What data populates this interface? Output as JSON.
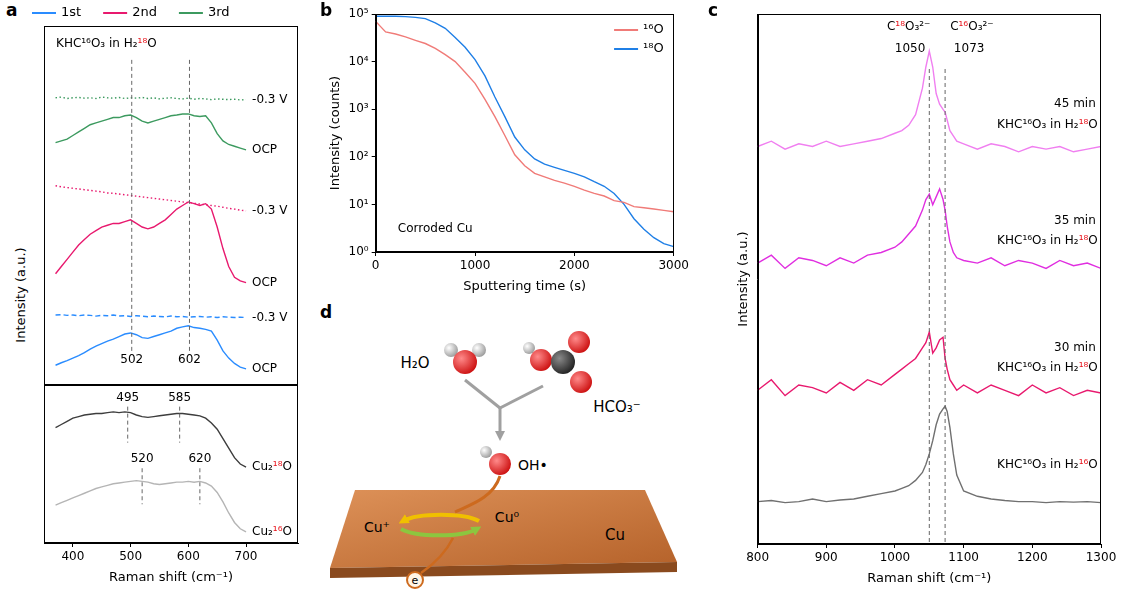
{
  "chart_data": [
    {
      "panel": "a",
      "type": "line",
      "x": [
        370,
        380,
        390,
        400,
        410,
        420,
        430,
        440,
        450,
        460,
        470,
        480,
        490,
        500,
        510,
        520,
        530,
        540,
        550,
        560,
        570,
        580,
        590,
        600,
        610,
        620,
        630,
        640,
        650,
        660,
        670,
        680,
        690,
        700
      ],
      "xlim": [
        350,
        790
      ],
      "ylim": [
        0,
        10
      ],
      "tick_labels": false,
      "legend": "top",
      "y_label": "Intensity (a.u.)",
      "annotations": [
        {
          "text": "KHC¹⁶O₃ in H₂¹⁸O",
          "x": 458,
          "y": 9.5
        }
      ],
      "reference_lines": [
        {
          "x": 502,
          "label": "502",
          "label_y": 0.7
        },
        {
          "x": 602,
          "label": "602",
          "label_y": 0.7
        }
      ],
      "series": [
        {
          "name": "1st",
          "color": "#2a8cff",
          "end_label": "OCP",
          "values": [
            0.55,
            0.62,
            0.68,
            0.75,
            0.82,
            0.9,
            1.0,
            1.08,
            1.15,
            1.22,
            1.28,
            1.35,
            1.42,
            1.45,
            1.4,
            1.32,
            1.3,
            1.35,
            1.4,
            1.45,
            1.5,
            1.58,
            1.62,
            1.65,
            1.6,
            1.58,
            1.55,
            1.5,
            1.25,
            0.95,
            0.75,
            0.6,
            0.5,
            0.45
          ]
        },
        {
          "name": "1st",
          "color": "#2a8cff",
          "line_style": "dashed",
          "end_label": "-0.3 V",
          "values": [
            1.95,
            1.96,
            1.94,
            1.95,
            1.93,
            1.95,
            1.94,
            1.92,
            1.94,
            1.93,
            1.95,
            1.92,
            1.93,
            1.91,
            1.93,
            1.92,
            1.9,
            1.92,
            1.91,
            1.9,
            1.92,
            1.9,
            1.91,
            1.89,
            1.9,
            1.91,
            1.89,
            1.9,
            1.88,
            1.9,
            1.89,
            1.88,
            1.89,
            1.88
          ]
        },
        {
          "name": "2nd",
          "color": "#e8196e",
          "end_label": "OCP",
          "values": [
            3.1,
            3.3,
            3.5,
            3.7,
            3.9,
            4.05,
            4.2,
            4.3,
            4.4,
            4.45,
            4.5,
            4.5,
            4.55,
            4.6,
            4.5,
            4.4,
            4.35,
            4.4,
            4.5,
            4.6,
            4.75,
            4.9,
            5.0,
            5.1,
            5.05,
            5.0,
            5.05,
            4.9,
            4.4,
            3.8,
            3.3,
            3.0,
            2.9,
            2.85
          ]
        },
        {
          "name": "2nd",
          "color": "#e8196e",
          "line_style": "dotted",
          "end_label": "-0.3 V",
          "values": [
            5.55,
            5.52,
            5.5,
            5.48,
            5.46,
            5.44,
            5.42,
            5.4,
            5.38,
            5.35,
            5.34,
            5.32,
            5.3,
            5.28,
            5.26,
            5.24,
            5.22,
            5.2,
            5.18,
            5.16,
            5.14,
            5.12,
            5.1,
            5.08,
            5.06,
            5.04,
            5.02,
            5.0,
            4.98,
            4.95,
            4.92,
            4.9,
            4.87,
            4.85
          ]
        },
        {
          "name": "3rd",
          "color": "#3c9a5f",
          "end_label": "OCP",
          "values": [
            6.75,
            6.8,
            6.85,
            6.95,
            7.05,
            7.15,
            7.25,
            7.3,
            7.35,
            7.4,
            7.45,
            7.45,
            7.5,
            7.52,
            7.45,
            7.35,
            7.3,
            7.35,
            7.4,
            7.45,
            7.5,
            7.52,
            7.55,
            7.55,
            7.5,
            7.48,
            7.5,
            7.3,
            7.0,
            6.8,
            6.7,
            6.65,
            6.6,
            6.55
          ]
        },
        {
          "name": "3rd",
          "color": "#3c9a5f",
          "line_style": "dotted",
          "end_label": "-0.3 V",
          "values": [
            8.0,
            8.02,
            7.98,
            8.0,
            8.01,
            7.99,
            8.0,
            7.98,
            8.02,
            8.0,
            7.99,
            8.01,
            7.98,
            8.0,
            7.99,
            8.01,
            7.98,
            8.0,
            7.97,
            7.99,
            8.0,
            7.98,
            7.97,
            7.99,
            7.96,
            7.98,
            7.97,
            7.95,
            7.97,
            7.96,
            7.95,
            7.96,
            7.94,
            7.95
          ]
        }
      ]
    },
    {
      "panel": "a",
      "type": "line",
      "x": [
        370,
        380,
        390,
        400,
        410,
        420,
        430,
        440,
        450,
        460,
        470,
        480,
        490,
        500,
        510,
        520,
        530,
        540,
        550,
        560,
        570,
        580,
        590,
        600,
        610,
        620,
        630,
        640,
        650,
        660,
        670,
        680,
        690,
        700
      ],
      "xlim": [
        350,
        790
      ],
      "xticks": [
        400,
        500,
        600,
        700
      ],
      "ylim": [
        0,
        10
      ],
      "tick_labels": "x",
      "x_label": "Raman shift (cm⁻¹)",
      "reference_lines": [
        {
          "x": 495,
          "label": "495",
          "label_y": 9.2
        },
        {
          "x": 585,
          "label": "585",
          "label_y": 9.2
        },
        {
          "x": 520,
          "label": "520",
          "label_y": 5.3
        },
        {
          "x": 620,
          "label": "620",
          "label_y": 5.3
        }
      ],
      "series": [
        {
          "color": "#3d3d3d",
          "end_label": "Cu₂¹⁸O",
          "values": [
            7.3,
            7.5,
            7.7,
            7.9,
            8.0,
            8.1,
            8.15,
            8.2,
            8.2,
            8.25,
            8.3,
            8.25,
            8.3,
            8.25,
            8.1,
            8.0,
            7.95,
            8.0,
            8.05,
            8.1,
            8.15,
            8.2,
            8.2,
            8.15,
            8.1,
            8.05,
            7.9,
            7.6,
            7.2,
            6.6,
            6.0,
            5.4,
            5.0,
            4.8
          ]
        },
        {
          "color": "#b5b5b5",
          "end_label": "Cu₂¹⁶O",
          "values": [
            2.4,
            2.55,
            2.7,
            2.85,
            3.0,
            3.15,
            3.3,
            3.45,
            3.55,
            3.65,
            3.75,
            3.8,
            3.85,
            3.9,
            3.95,
            3.9,
            3.85,
            3.75,
            3.7,
            3.75,
            3.8,
            3.85,
            3.85,
            3.9,
            3.85,
            3.9,
            3.8,
            3.6,
            3.2,
            2.6,
            1.9,
            1.3,
            0.9,
            0.7
          ]
        }
      ]
    },
    {
      "panel": "b",
      "type": "line",
      "log": "y",
      "x": [
        0,
        100,
        200,
        300,
        400,
        500,
        600,
        700,
        800,
        900,
        1000,
        1100,
        1200,
        1300,
        1400,
        1500,
        1600,
        1700,
        1800,
        1900,
        2000,
        2100,
        2200,
        2300,
        2400,
        2500,
        2600,
        2700,
        2800,
        2900,
        3000
      ],
      "xlim": [
        0,
        3000
      ],
      "xticks": [
        0,
        1000,
        2000,
        3000
      ],
      "ylim": [
        1,
        100000
      ],
      "yticks": [
        {
          "value": 1,
          "label": "10⁰"
        },
        {
          "value": 10,
          "label": "10¹"
        },
        {
          "value": 100,
          "label": "10²"
        },
        {
          "value": 1000,
          "label": "10³"
        },
        {
          "value": 10000,
          "label": "10⁴"
        },
        {
          "value": 100000,
          "label": "10⁵"
        }
      ],
      "x_label": "Sputtering time (s)",
      "y_label": "Intensity (counts)",
      "legend": "upper right",
      "annotations": [
        {
          "text": "Corroded Cu",
          "x": 600,
          "y": 3
        }
      ],
      "series": [
        {
          "name": "¹⁶O",
          "color": "#f07b78",
          "values": [
            70000,
            42000,
            38000,
            33000,
            28000,
            24000,
            19000,
            14000,
            10000,
            6000,
            3500,
            1600,
            700,
            280,
            110,
            65,
            45,
            38,
            32,
            28,
            24,
            20,
            17,
            15,
            12,
            11,
            9,
            8.5,
            8,
            7.5,
            7
          ]
        },
        {
          "name": "¹⁸O",
          "color": "#1f7fe6",
          "values": [
            90000,
            90000,
            90000,
            88000,
            85000,
            80000,
            65000,
            50000,
            32000,
            20000,
            11000,
            5000,
            1800,
            700,
            260,
            140,
            90,
            70,
            60,
            52,
            45,
            38,
            30,
            24,
            17,
            10,
            5,
            3,
            2,
            1.5,
            1.3
          ]
        }
      ]
    },
    {
      "panel": "c",
      "type": "line",
      "x": [
        800,
        820,
        840,
        860,
        880,
        900,
        920,
        940,
        960,
        980,
        1000,
        1010,
        1020,
        1030,
        1040,
        1045,
        1050,
        1055,
        1060,
        1065,
        1070,
        1073,
        1076,
        1080,
        1085,
        1090,
        1100,
        1120,
        1140,
        1160,
        1180,
        1200,
        1220,
        1240,
        1260,
        1280,
        1300
      ],
      "xlim": [
        800,
        1300
      ],
      "xticks": [
        800,
        900,
        1000,
        1100,
        1200,
        1300
      ],
      "ylim": [
        0,
        10
      ],
      "tick_labels": "x",
      "x_label": "Raman shift (cm⁻¹)",
      "y_label": "Intensity (a.u.)",
      "reference_lines": [
        {
          "x": 1050
        },
        {
          "x": 1073
        }
      ],
      "annotations": [
        {
          "text": "C¹⁸O₃²⁻",
          "x": 1020,
          "y": 9.75
        },
        {
          "text": "1050",
          "x": 1022,
          "y": 9.35
        },
        {
          "text": "C¹⁶O₃²⁻",
          "x": 1112,
          "y": 9.75
        },
        {
          "text": "1073",
          "x": 1108,
          "y": 9.35
        },
        {
          "text": "45 min",
          "x": 1262,
          "y": 8.3
        },
        {
          "text": "KHC¹⁶O₃ in H₂¹⁸O",
          "x": 1222,
          "y": 7.9
        },
        {
          "text": "35 min",
          "x": 1262,
          "y": 6.1
        },
        {
          "text": "KHC¹⁶O₃ in H₂¹⁸O",
          "x": 1222,
          "y": 5.72
        },
        {
          "text": "30 min",
          "x": 1262,
          "y": 3.7
        },
        {
          "text": "KHC¹⁶O₃ in H₂¹⁸O",
          "x": 1222,
          "y": 3.32
        },
        {
          "text": "KHC¹⁶O₃ in H₂¹⁶O",
          "x": 1222,
          "y": 1.5
        }
      ],
      "series": [
        {
          "color": "#f07ff0",
          "values": [
            7.5,
            7.6,
            7.45,
            7.55,
            7.5,
            7.6,
            7.5,
            7.55,
            7.6,
            7.65,
            7.75,
            7.8,
            7.9,
            8.1,
            8.6,
            9.0,
            9.3,
            9.0,
            8.5,
            8.3,
            8.2,
            8.15,
            8.0,
            7.8,
            7.7,
            7.6,
            7.55,
            7.45,
            7.55,
            7.5,
            7.4,
            7.5,
            7.45,
            7.5,
            7.4,
            7.45,
            7.5
          ]
        },
        {
          "color": "#e02ee0",
          "values": [
            5.3,
            5.45,
            5.2,
            5.4,
            5.35,
            5.25,
            5.4,
            5.3,
            5.45,
            5.5,
            5.6,
            5.7,
            5.85,
            6.0,
            6.3,
            6.5,
            6.6,
            6.4,
            6.55,
            6.7,
            6.5,
            6.3,
            6.0,
            5.7,
            5.5,
            5.4,
            5.35,
            5.3,
            5.4,
            5.25,
            5.35,
            5.3,
            5.2,
            5.35,
            5.25,
            5.3,
            5.2
          ]
        },
        {
          "color": "#e8196e",
          "values": [
            2.9,
            3.1,
            2.8,
            3.0,
            2.95,
            2.85,
            3.05,
            2.9,
            3.1,
            3.0,
            3.2,
            3.3,
            3.4,
            3.5,
            3.7,
            3.8,
            4.0,
            3.6,
            3.7,
            3.85,
            3.9,
            3.5,
            3.3,
            3.1,
            3.0,
            2.9,
            3.0,
            2.85,
            3.0,
            2.9,
            2.8,
            3.0,
            2.85,
            2.95,
            2.8,
            2.9,
            2.85
          ]
        },
        {
          "color": "#707070",
          "values": [
            0.8,
            0.82,
            0.78,
            0.8,
            0.85,
            0.8,
            0.83,
            0.85,
            0.9,
            0.95,
            1.0,
            1.05,
            1.1,
            1.2,
            1.35,
            1.5,
            1.7,
            1.95,
            2.25,
            2.45,
            2.55,
            2.6,
            2.5,
            2.2,
            1.7,
            1.3,
            1.0,
            0.9,
            0.85,
            0.82,
            0.8,
            0.8,
            0.78,
            0.8,
            0.79,
            0.8,
            0.78
          ]
        }
      ]
    }
  ],
  "diagram": {
    "panel": "d",
    "labels": {
      "water": "H₂O",
      "bicarbonate": "HCO₃⁻",
      "radical": "OH•",
      "cu_plus": "Cu⁺",
      "cu_zero": "Cu⁰",
      "copper": "Cu",
      "electron": "e"
    }
  }
}
